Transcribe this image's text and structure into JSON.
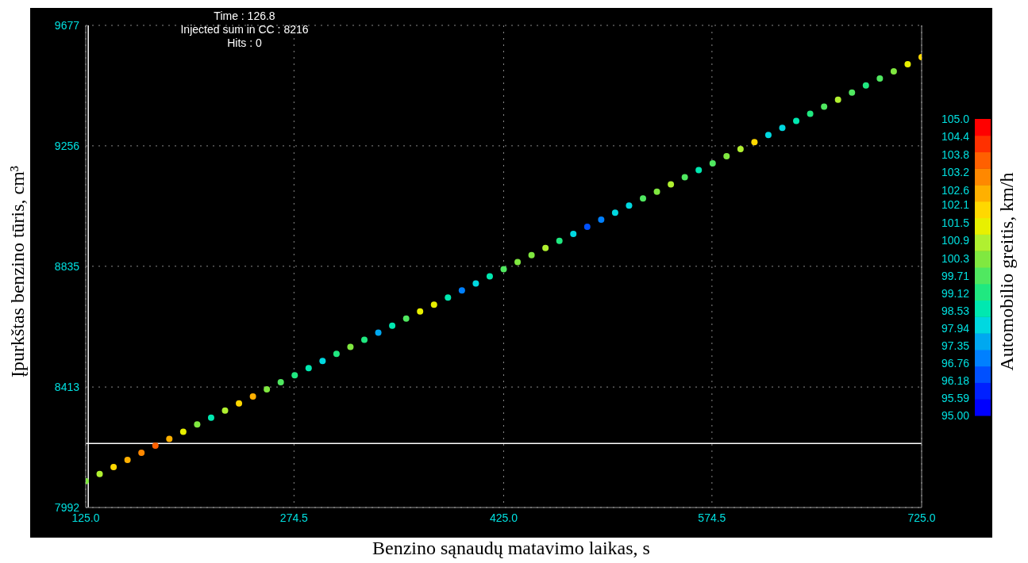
{
  "chart_data": {
    "type": "scatter",
    "xlabel": "Benzino sąnaudų matavimo laikas, s",
    "ylabel": "Įpurkštas benzino tūris, cm³",
    "clabel": "Automobilio greitis, km/h",
    "annotations": [
      "Time : 126.8",
      "Injected sum in CC : 8216",
      "Hits : 0"
    ],
    "x": [
      125,
      135,
      145,
      155,
      165,
      175,
      185,
      195,
      205,
      215,
      225,
      235,
      245,
      255,
      265,
      275,
      285,
      295,
      305,
      315,
      325,
      335,
      345,
      355,
      365,
      375,
      385,
      395,
      405,
      415,
      425,
      435,
      445,
      455,
      465,
      475,
      485,
      495,
      505,
      515,
      525,
      535,
      545,
      555,
      565,
      575,
      585,
      595,
      605,
      615,
      625,
      635,
      645,
      655,
      665,
      675,
      685,
      695,
      705,
      715,
      725
    ],
    "values": [
      8084,
      8109,
      8133,
      8158,
      8183,
      8208,
      8232,
      8257,
      8282,
      8306,
      8331,
      8356,
      8380,
      8405,
      8430,
      8454,
      8479,
      8504,
      8529,
      8553,
      8578,
      8603,
      8627,
      8652,
      8677,
      8701,
      8726,
      8751,
      8775,
      8800,
      8825,
      8850,
      8874,
      8899,
      8924,
      8948,
      8973,
      8998,
      9022,
      9047,
      9072,
      9096,
      9121,
      9146,
      9171,
      9195,
      9220,
      9245,
      9269,
      9294,
      9319,
      9343,
      9368,
      9393,
      9417,
      9442,
      9467,
      9491,
      9516,
      9541,
      9566
    ],
    "cvalues": [
      100.0,
      101.0,
      101.8,
      102.4,
      103.2,
      103.4,
      102.4,
      101.2,
      100.2,
      98.8,
      100.6,
      102.0,
      102.6,
      100.5,
      99.7,
      99.4,
      98.5,
      98.2,
      99.3,
      100.2,
      99.0,
      97.6,
      98.6,
      99.9,
      101.2,
      101.6,
      98.5,
      96.9,
      97.8,
      98.8,
      99.7,
      100.0,
      100.3,
      100.9,
      99.4,
      97.9,
      96.5,
      97.2,
      97.8,
      98.0,
      99.6,
      100.3,
      100.6,
      99.6,
      98.5,
      99.6,
      100.2,
      101.0,
      101.8,
      98.2,
      97.9,
      98.8,
      99.0,
      99.9,
      100.6,
      99.5,
      99.0,
      99.6,
      100.2,
      101.4,
      101.8
    ],
    "xlim": [
      125,
      725
    ],
    "xticks": [
      {
        "value": 125,
        "label": "125.0"
      },
      {
        "value": 274.5,
        "label": "274.5"
      },
      {
        "value": 425,
        "label": "425.0"
      },
      {
        "value": 574.5,
        "label": "574.5"
      },
      {
        "value": 725,
        "label": "725.0"
      }
    ],
    "ylim": [
      7992,
      9677
    ],
    "yticks": [
      7992,
      8413,
      8835,
      9256,
      9677
    ],
    "clim": [
      95,
      105
    ],
    "cticks": [
      {
        "value": 105,
        "label": "105.0"
      },
      104.4,
      103.8,
      103.2,
      102.6,
      102.1,
      101.5,
      100.9,
      100.3,
      99.71,
      99.12,
      98.53,
      97.94,
      97.35,
      96.76,
      96.18,
      95.59,
      {
        "value": 95,
        "label": "95.00"
      }
    ],
    "ref_lines": [
      {
        "axis": "x",
        "value": 126.8,
        "color": "#ffffff"
      },
      {
        "axis": "y",
        "value": 8216,
        "color": "#ffffff"
      }
    ],
    "grid": true,
    "marker": "circle"
  }
}
